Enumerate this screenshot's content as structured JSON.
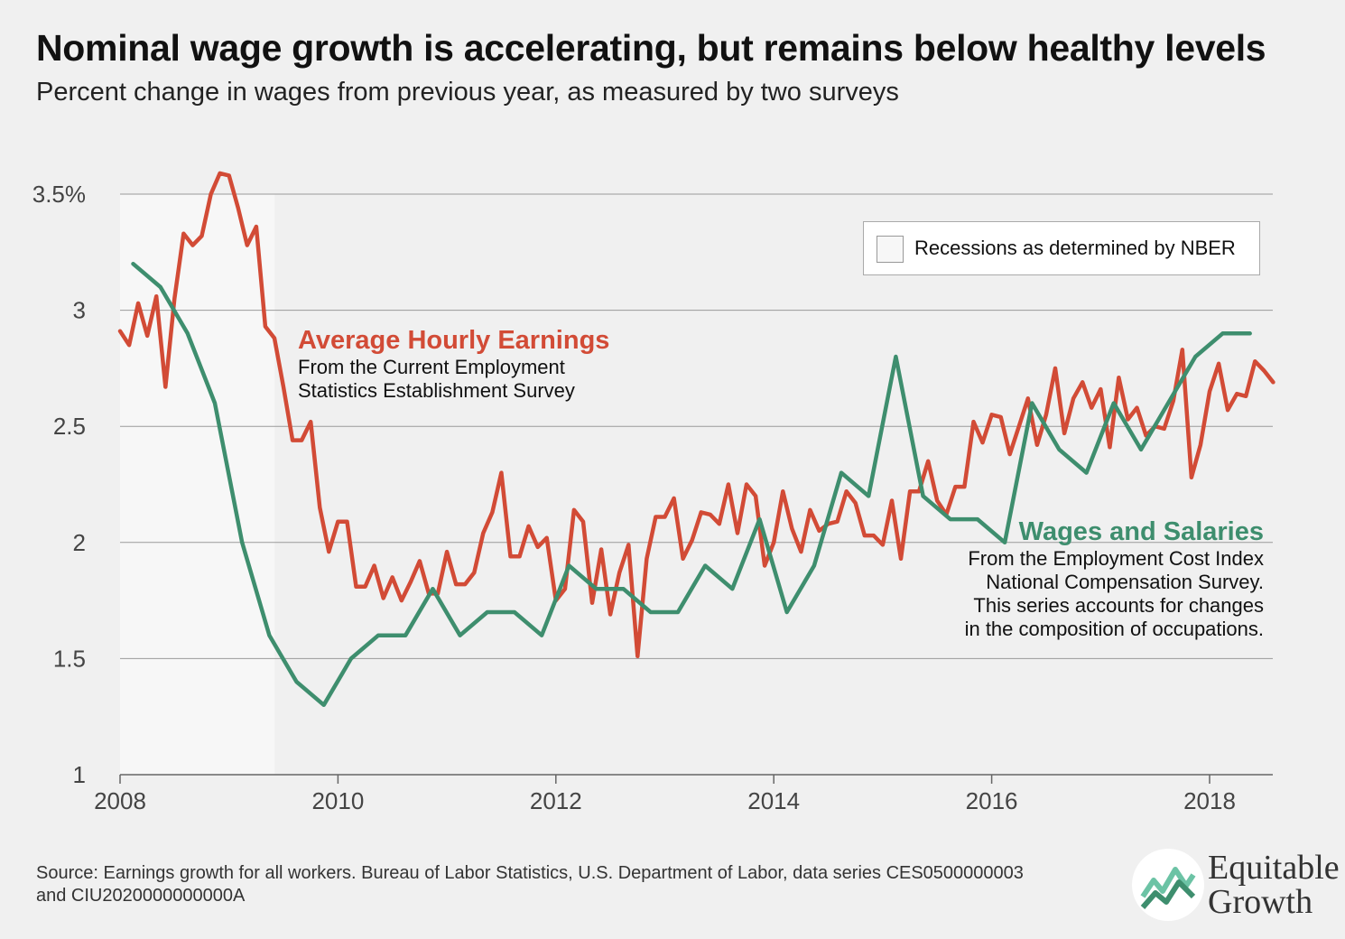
{
  "header": {
    "title": "Nominal wage growth is accelerating, but remains below healthy levels",
    "subtitle": "Percent change in wages from previous year, as measured by two surveys"
  },
  "legend": {
    "recession_label": "Recessions as determined by NBER"
  },
  "annotations": {
    "ahe_title": "Average Hourly Earnings",
    "ahe_line1": "From the Current Employment",
    "ahe_line2": "Statistics Establishment Survey",
    "ws_title": "Wages and Salaries",
    "ws_line1": "From the Employment Cost Index",
    "ws_line2": "National Compensation Survey.",
    "ws_line3": "This series accounts for changes",
    "ws_line4": "in the composition of occupations."
  },
  "footer": {
    "source": "Source: Earnings growth for all workers. Bureau of Labor Statistics, U.S. Department of Labor, data series CES0500000003 and CIU2020000000000A",
    "logo_line1": "Equitable",
    "logo_line2": "Growth"
  },
  "colors": {
    "ahe": "#d24b36",
    "ws": "#3e8e6e",
    "recession_fill": "#f7f7f7",
    "grid": "#9a9a9a"
  },
  "chart_data": {
    "type": "line",
    "xlim": [
      2008,
      2018.58
    ],
    "ylim": [
      1,
      3.6
    ],
    "x_ticks": [
      2008,
      2010,
      2012,
      2014,
      2016,
      2018
    ],
    "x_tick_labels": [
      "2008",
      "2010",
      "2012",
      "2014",
      "2016",
      "2018"
    ],
    "y_ticks": [
      1,
      1.5,
      2,
      2.5,
      3,
      3.5
    ],
    "y_tick_labels": [
      "1",
      "1.5",
      "2",
      "2.5",
      "3",
      "3.5%"
    ],
    "grid": "horizontal",
    "recession": {
      "start": 2008.0,
      "end": 2009.42
    },
    "series": [
      {
        "name": "Average Hourly Earnings",
        "color_key": "ahe",
        "x_start": 2008.0,
        "x_step": 0.0833333,
        "values": [
          2.91,
          2.85,
          3.03,
          2.89,
          3.06,
          2.67,
          3.05,
          3.33,
          3.28,
          3.32,
          3.5,
          3.59,
          3.58,
          3.44,
          3.28,
          3.36,
          2.93,
          2.88,
          2.67,
          2.44,
          2.44,
          2.52,
          2.15,
          1.96,
          2.09,
          2.09,
          1.81,
          1.81,
          1.9,
          1.76,
          1.85,
          1.75,
          1.83,
          1.92,
          1.78,
          1.78,
          1.96,
          1.82,
          1.82,
          1.87,
          2.04,
          2.13,
          2.3,
          1.94,
          1.94,
          2.07,
          1.98,
          2.02,
          1.75,
          1.8,
          2.14,
          2.09,
          1.74,
          1.97,
          1.69,
          1.87,
          1.99,
          1.51,
          1.93,
          2.11,
          2.11,
          2.19,
          1.93,
          2.01,
          2.13,
          2.12,
          2.08,
          2.25,
          2.04,
          2.25,
          2.2,
          1.9,
          2.0,
          2.22,
          2.06,
          1.96,
          2.14,
          2.05,
          2.08,
          2.09,
          2.22,
          2.17,
          2.03,
          2.03,
          1.99,
          2.18,
          1.93,
          2.22,
          2.22,
          2.35,
          2.18,
          2.12,
          2.24,
          2.24,
          2.52,
          2.43,
          2.55,
          2.54,
          2.38,
          2.5,
          2.62,
          2.42,
          2.55,
          2.75,
          2.47,
          2.62,
          2.69,
          2.58,
          2.66,
          2.41,
          2.71,
          2.53,
          2.58,
          2.46,
          2.5,
          2.49,
          2.61,
          2.83,
          2.28,
          2.42,
          2.65,
          2.77,
          2.57,
          2.64,
          2.63,
          2.78,
          2.74,
          2.69
        ]
      },
      {
        "name": "Wages and Salaries",
        "color_key": "ws",
        "x": [
          2008.12,
          2008.37,
          2008.62,
          2008.87,
          2009.12,
          2009.37,
          2009.62,
          2009.87,
          2010.12,
          2010.37,
          2010.62,
          2010.87,
          2011.12,
          2011.37,
          2011.62,
          2011.87,
          2012.12,
          2012.37,
          2012.62,
          2012.87,
          2013.12,
          2013.37,
          2013.62,
          2013.87,
          2014.12,
          2014.37,
          2014.62,
          2014.87,
          2015.12,
          2015.37,
          2015.62,
          2015.87,
          2016.12,
          2016.37,
          2016.62,
          2016.87,
          2017.12,
          2017.37,
          2017.62,
          2017.87,
          2018.12,
          2018.37
        ],
        "values": [
          3.2,
          3.1,
          2.9,
          2.6,
          2.0,
          1.6,
          1.4,
          1.3,
          1.5,
          1.6,
          1.6,
          1.8,
          1.6,
          1.7,
          1.7,
          1.6,
          1.9,
          1.8,
          1.8,
          1.7,
          1.7,
          1.9,
          1.8,
          2.1,
          1.7,
          1.9,
          2.3,
          2.2,
          2.8,
          2.2,
          2.1,
          2.1,
          2.0,
          2.6,
          2.4,
          2.3,
          2.6,
          2.4,
          2.6,
          2.8,
          2.9,
          2.9
        ]
      }
    ]
  }
}
